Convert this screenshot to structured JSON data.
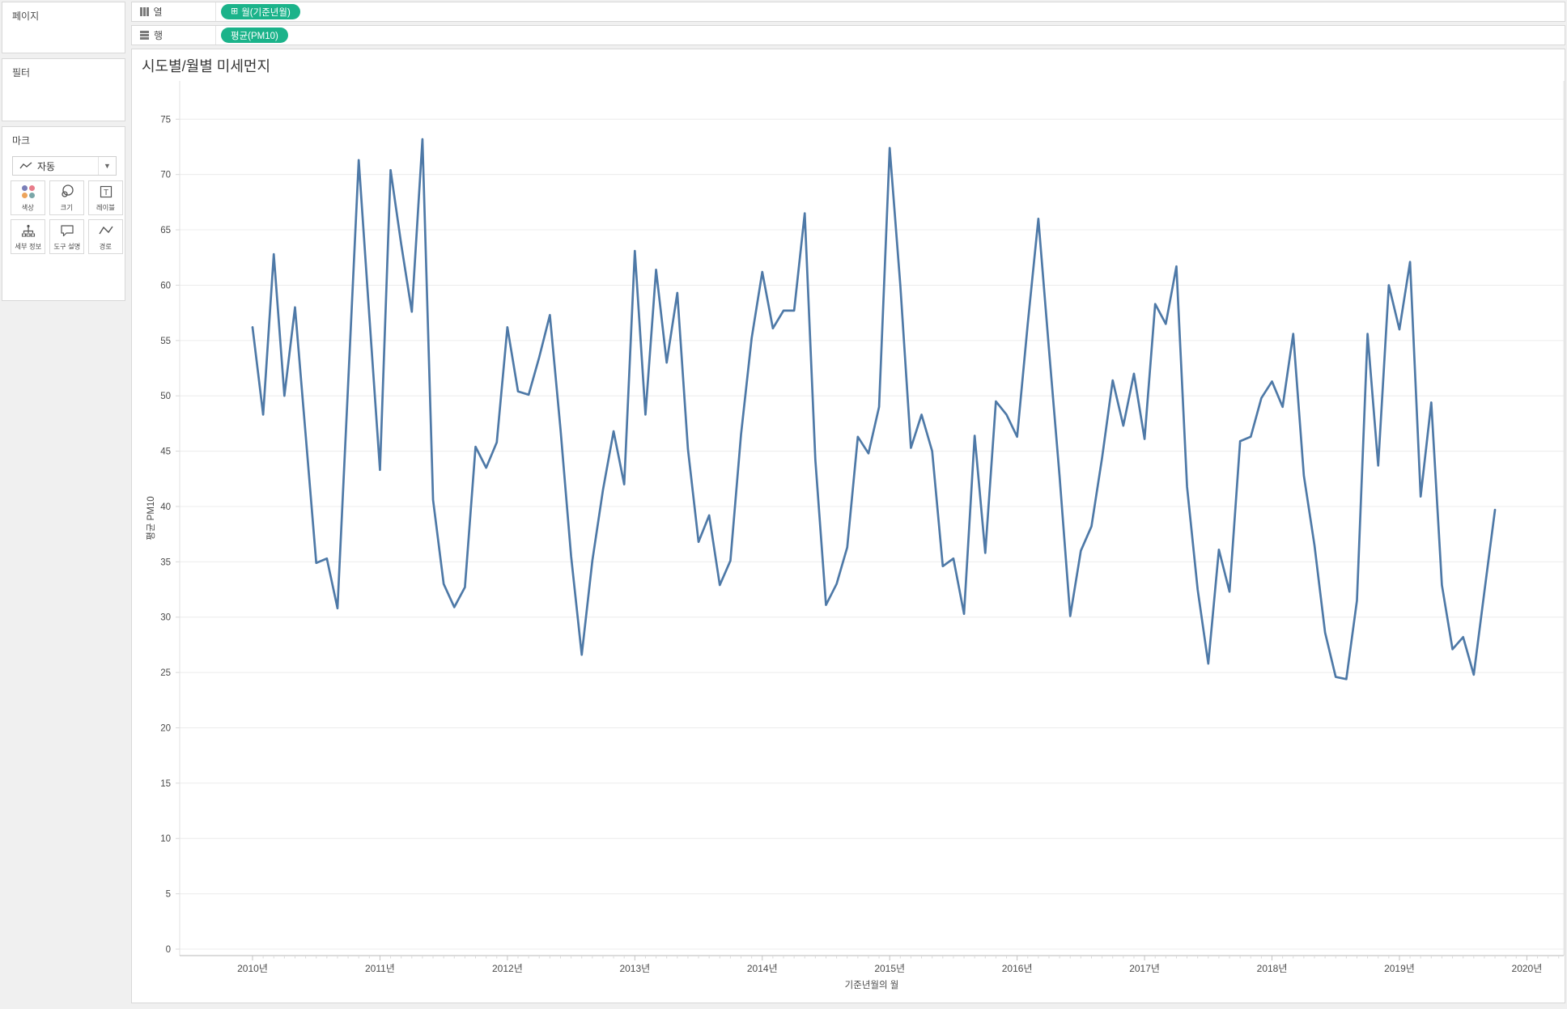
{
  "left_panel": {
    "pages_label": "페이지",
    "filters_label": "필터",
    "marks_label": "마크",
    "marks_type_dropdown": {
      "value": "자동",
      "icon": "line-mark-icon"
    },
    "marks_buttons": [
      {
        "label": "색상",
        "icon": "color-dots-icon"
      },
      {
        "label": "크기",
        "icon": "size-circles-icon"
      },
      {
        "label": "레이블",
        "icon": "label-T-icon"
      },
      {
        "label": "세부 정보",
        "icon": "detail-tree-icon"
      },
      {
        "label": "도구 설명",
        "icon": "tooltip-bubble-icon"
      },
      {
        "label": "경로",
        "icon": "path-zigzag-icon"
      }
    ],
    "color_dot_colors": [
      "#7b7fb8",
      "#e87c8a",
      "#eda45c",
      "#7aa6a8"
    ]
  },
  "shelves": {
    "columns_label": "열",
    "columns_pill": "월(기준년월)",
    "columns_pill_expand_glyph": "⊞",
    "rows_label": "행",
    "rows_pill": "평균(PM10)",
    "pill_color": "#1bb38a"
  },
  "chart_data": {
    "type": "line",
    "title": "시도별/월별 미세먼지",
    "xlabel": "기준년월의 월",
    "ylabel": "평균 PM10",
    "ylim": [
      0,
      75
    ],
    "y_tick_step": 5,
    "grid": true,
    "legend_position": "none",
    "line_color": "#4e79a7",
    "x_interval": "month",
    "x_start": "2010-01",
    "x_end": "2019-10",
    "x_year_labels": [
      "2010년",
      "2011년",
      "2012년",
      "2013년",
      "2014년",
      "2015년",
      "2016년",
      "2017년",
      "2018년",
      "2019년",
      "2020년"
    ],
    "values": [
      56.2,
      48.3,
      62.8,
      50.0,
      58.0,
      46.5,
      34.9,
      35.3,
      30.8,
      51.0,
      71.3,
      57.2,
      43.3,
      70.4,
      63.7,
      57.6,
      73.2,
      40.6,
      33.0,
      30.9,
      32.7,
      45.4,
      43.5,
      45.8,
      56.2,
      50.4,
      50.1,
      53.5,
      57.3,
      47.0,
      35.5,
      26.6,
      35.1,
      41.5,
      46.8,
      42.0,
      63.1,
      48.3,
      61.4,
      53.0,
      59.3,
      45.2,
      36.8,
      39.2,
      32.9,
      35.1,
      46.5,
      55.2,
      61.2,
      56.1,
      57.7,
      57.7,
      66.5,
      44.2,
      31.1,
      33.0,
      36.3,
      46.3,
      44.8,
      49.0,
      72.4,
      60.0,
      45.3,
      48.3,
      45.0,
      34.6,
      35.3,
      30.3,
      46.4,
      35.8,
      49.5,
      48.3,
      46.3,
      56.5,
      66.0,
      54.2,
      42.7,
      30.1,
      36.0,
      38.2,
      44.4,
      51.4,
      47.3,
      52.0,
      46.1,
      58.3,
      56.5,
      61.7,
      41.8,
      32.5,
      25.8,
      36.1,
      32.3,
      45.9,
      46.3,
      49.8,
      51.3,
      49.0,
      55.6,
      42.8,
      36.5,
      28.6,
      24.6,
      24.4,
      31.5,
      55.6,
      43.7,
      60.0,
      56.0,
      62.1,
      40.9,
      49.4,
      32.9,
      27.1,
      28.2,
      24.8,
      32.3,
      39.7
    ]
  }
}
